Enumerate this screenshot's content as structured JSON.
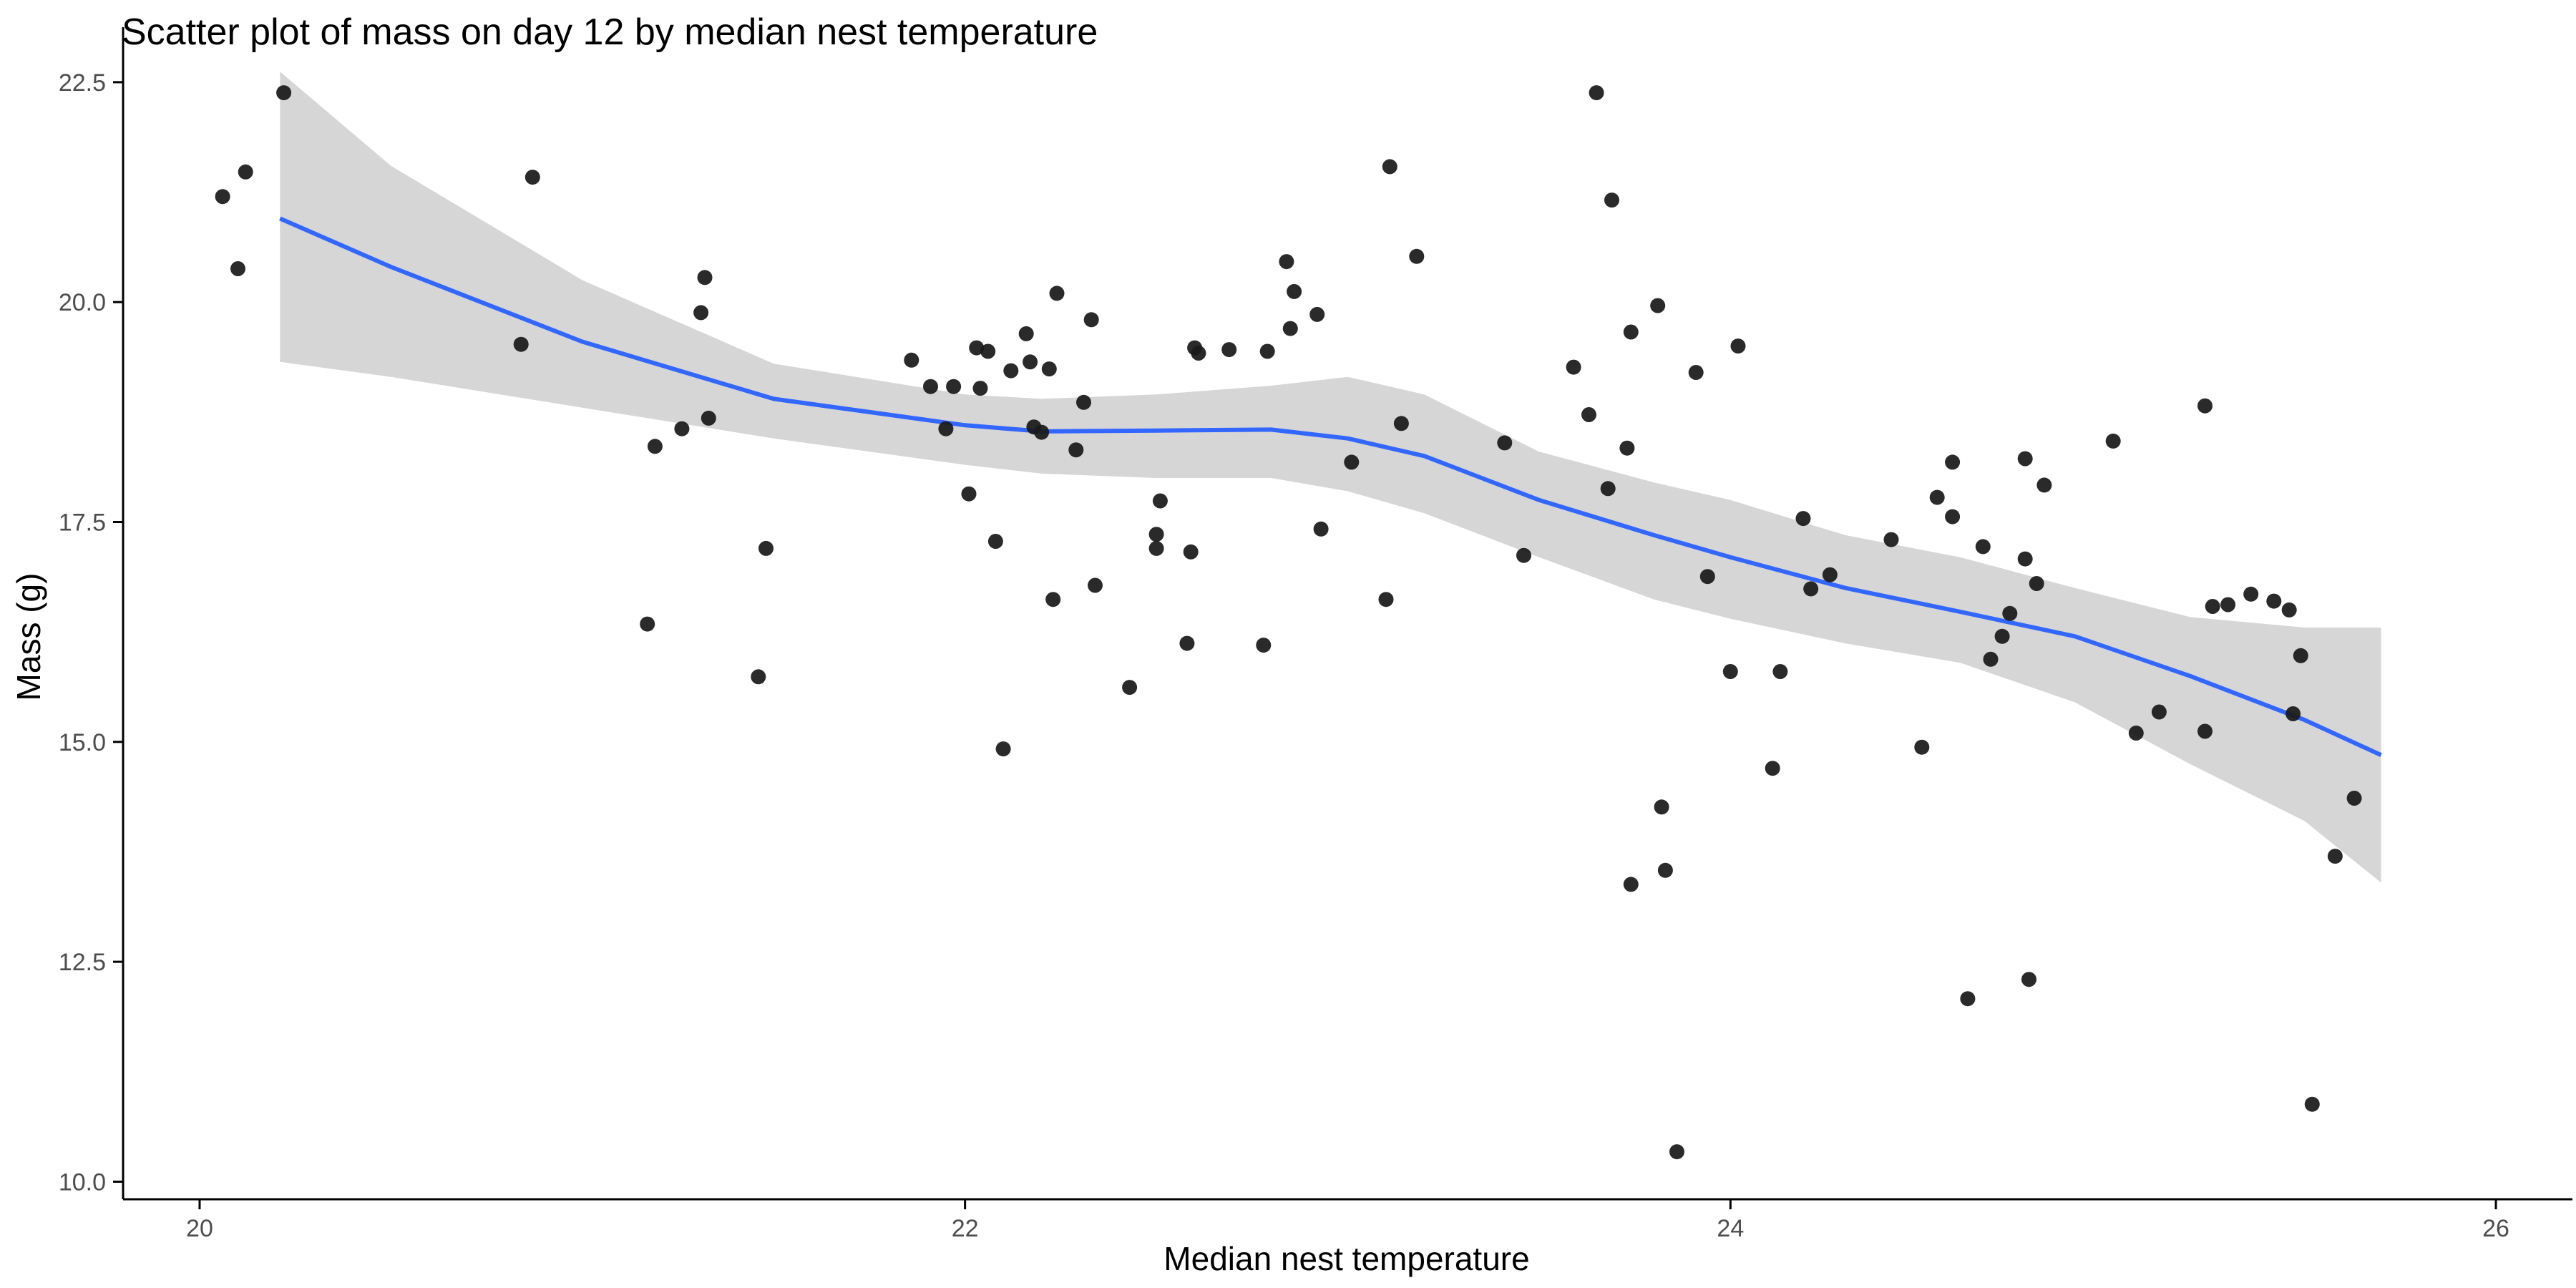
{
  "chart_data": {
    "type": "scatter",
    "title": "Scatter plot of mass on day 12 by median nest temperature",
    "xlabel": "Median nest temperature",
    "ylabel": "Mass (g)",
    "xlim": [
      19.8,
      26.2
    ],
    "ylim": [
      9.8,
      22.8
    ],
    "x_ticks": [
      20,
      22,
      24,
      26
    ],
    "x_tick_labels": [
      "20",
      "22",
      "24",
      "26"
    ],
    "y_ticks": [
      10,
      12.5,
      15,
      17.5,
      20,
      22.5
    ],
    "y_tick_labels": [
      "10.0",
      "12.5",
      "15.0",
      "17.5",
      "20.0",
      "22.5"
    ],
    "grid": false,
    "legend": "none",
    "colors": {
      "points": "#1a1a1a",
      "smooth_line": "#3366ff",
      "confidence_band": "#d6d6d6",
      "axis": "#000000",
      "tick_label": "#4d4d4d"
    },
    "points": [
      {
        "x": 20.06,
        "y": 21.2
      },
      {
        "x": 20.1,
        "y": 20.38
      },
      {
        "x": 20.12,
        "y": 21.48
      },
      {
        "x": 20.22,
        "y": 22.38
      },
      {
        "x": 20.84,
        "y": 19.52
      },
      {
        "x": 20.87,
        "y": 21.42
      },
      {
        "x": 21.17,
        "y": 16.34
      },
      {
        "x": 21.19,
        "y": 18.36
      },
      {
        "x": 21.26,
        "y": 18.56
      },
      {
        "x": 21.31,
        "y": 19.88
      },
      {
        "x": 21.32,
        "y": 20.28
      },
      {
        "x": 21.33,
        "y": 18.68
      },
      {
        "x": 21.46,
        "y": 15.74
      },
      {
        "x": 21.48,
        "y": 17.2
      },
      {
        "x": 21.86,
        "y": 19.34
      },
      {
        "x": 21.91,
        "y": 19.04
      },
      {
        "x": 21.95,
        "y": 18.56
      },
      {
        "x": 21.97,
        "y": 19.04
      },
      {
        "x": 22.01,
        "y": 17.82
      },
      {
        "x": 22.03,
        "y": 19.48
      },
      {
        "x": 22.04,
        "y": 19.02
      },
      {
        "x": 22.06,
        "y": 19.44
      },
      {
        "x": 22.08,
        "y": 17.28
      },
      {
        "x": 22.1,
        "y": 14.92
      },
      {
        "x": 22.12,
        "y": 19.22
      },
      {
        "x": 22.16,
        "y": 19.64
      },
      {
        "x": 22.17,
        "y": 19.32
      },
      {
        "x": 22.18,
        "y": 18.58
      },
      {
        "x": 22.2,
        "y": 18.52
      },
      {
        "x": 22.22,
        "y": 19.24
      },
      {
        "x": 22.23,
        "y": 16.62
      },
      {
        "x": 22.24,
        "y": 20.1
      },
      {
        "x": 22.29,
        "y": 18.32
      },
      {
        "x": 22.31,
        "y": 18.86
      },
      {
        "x": 22.33,
        "y": 19.8
      },
      {
        "x": 22.34,
        "y": 16.78
      },
      {
        "x": 22.43,
        "y": 15.62
      },
      {
        "x": 22.5,
        "y": 17.36
      },
      {
        "x": 22.5,
        "y": 17.2
      },
      {
        "x": 22.51,
        "y": 17.74
      },
      {
        "x": 22.58,
        "y": 16.12
      },
      {
        "x": 22.59,
        "y": 17.16
      },
      {
        "x": 22.6,
        "y": 19.48
      },
      {
        "x": 22.61,
        "y": 19.42
      },
      {
        "x": 22.69,
        "y": 19.46
      },
      {
        "x": 22.78,
        "y": 16.1
      },
      {
        "x": 22.79,
        "y": 19.44
      },
      {
        "x": 22.84,
        "y": 20.46
      },
      {
        "x": 22.85,
        "y": 19.7
      },
      {
        "x": 22.86,
        "y": 20.12
      },
      {
        "x": 22.92,
        "y": 19.86
      },
      {
        "x": 22.93,
        "y": 17.42
      },
      {
        "x": 23.01,
        "y": 18.18
      },
      {
        "x": 23.1,
        "y": 16.62
      },
      {
        "x": 23.11,
        "y": 21.54
      },
      {
        "x": 23.14,
        "y": 18.62
      },
      {
        "x": 23.18,
        "y": 20.52
      },
      {
        "x": 23.41,
        "y": 18.4
      },
      {
        "x": 23.46,
        "y": 17.12
      },
      {
        "x": 23.59,
        "y": 19.26
      },
      {
        "x": 23.63,
        "y": 18.72
      },
      {
        "x": 23.65,
        "y": 22.38
      },
      {
        "x": 23.68,
        "y": 17.88
      },
      {
        "x": 23.69,
        "y": 21.16
      },
      {
        "x": 23.73,
        "y": 18.34
      },
      {
        "x": 23.74,
        "y": 19.66
      },
      {
        "x": 23.74,
        "y": 13.38
      },
      {
        "x": 23.81,
        "y": 19.96
      },
      {
        "x": 23.82,
        "y": 14.26
      },
      {
        "x": 23.83,
        "y": 13.54
      },
      {
        "x": 23.86,
        "y": 10.34
      },
      {
        "x": 23.91,
        "y": 19.2
      },
      {
        "x": 23.94,
        "y": 16.88
      },
      {
        "x": 24.0,
        "y": 15.8
      },
      {
        "x": 24.02,
        "y": 19.5
      },
      {
        "x": 24.11,
        "y": 14.7
      },
      {
        "x": 24.13,
        "y": 15.8
      },
      {
        "x": 24.19,
        "y": 17.54
      },
      {
        "x": 24.21,
        "y": 16.74
      },
      {
        "x": 24.26,
        "y": 16.9
      },
      {
        "x": 24.42,
        "y": 17.3
      },
      {
        "x": 24.5,
        "y": 14.94
      },
      {
        "x": 24.54,
        "y": 17.78
      },
      {
        "x": 24.58,
        "y": 18.18
      },
      {
        "x": 24.58,
        "y": 17.56
      },
      {
        "x": 24.62,
        "y": 12.08
      },
      {
        "x": 24.66,
        "y": 17.22
      },
      {
        "x": 24.68,
        "y": 15.94
      },
      {
        "x": 24.71,
        "y": 16.2
      },
      {
        "x": 24.73,
        "y": 16.46
      },
      {
        "x": 24.77,
        "y": 18.22
      },
      {
        "x": 24.77,
        "y": 17.08
      },
      {
        "x": 24.78,
        "y": 12.3
      },
      {
        "x": 24.8,
        "y": 16.8
      },
      {
        "x": 24.82,
        "y": 17.92
      },
      {
        "x": 25.0,
        "y": 18.42
      },
      {
        "x": 25.06,
        "y": 15.1
      },
      {
        "x": 25.12,
        "y": 15.34
      },
      {
        "x": 25.24,
        "y": 18.82
      },
      {
        "x": 25.24,
        "y": 15.12
      },
      {
        "x": 25.26,
        "y": 16.54
      },
      {
        "x": 25.3,
        "y": 16.56
      },
      {
        "x": 25.36,
        "y": 16.68
      },
      {
        "x": 25.42,
        "y": 16.6
      },
      {
        "x": 25.46,
        "y": 16.5
      },
      {
        "x": 25.47,
        "y": 15.32
      },
      {
        "x": 25.49,
        "y": 15.98
      },
      {
        "x": 25.52,
        "y": 10.88
      },
      {
        "x": 25.58,
        "y": 13.7
      },
      {
        "x": 25.63,
        "y": 14.36
      }
    ],
    "smooth": {
      "method": "loess",
      "x": [
        20.21,
        20.5,
        21.0,
        21.5,
        22.0,
        22.2,
        22.5,
        22.8,
        23.0,
        23.2,
        23.5,
        23.8,
        24.0,
        24.3,
        24.6,
        24.9,
        25.2,
        25.5,
        25.7
      ],
      "y": [
        20.95,
        20.4,
        19.55,
        18.9,
        18.6,
        18.53,
        18.54,
        18.55,
        18.45,
        18.25,
        17.75,
        17.35,
        17.1,
        16.75,
        16.48,
        16.2,
        15.75,
        15.25,
        14.85
      ],
      "lower": [
        19.32,
        19.15,
        18.8,
        18.45,
        18.15,
        18.05,
        18.0,
        18.0,
        17.85,
        17.6,
        17.1,
        16.62,
        16.4,
        16.12,
        15.9,
        15.45,
        14.75,
        14.1,
        13.4
      ],
      "upper": [
        22.62,
        21.55,
        20.25,
        19.3,
        18.95,
        18.9,
        18.95,
        19.05,
        19.15,
        18.95,
        18.3,
        17.95,
        17.75,
        17.35,
        17.1,
        16.75,
        16.42,
        16.3,
        16.3
      ]
    }
  }
}
